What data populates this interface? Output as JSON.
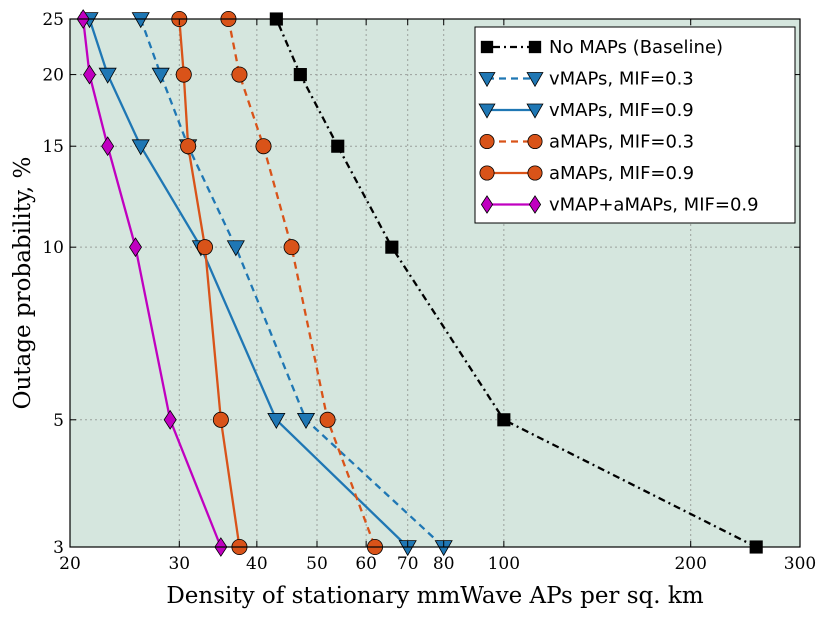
{
  "chart_data": {
    "type": "line",
    "title": "",
    "xlabel": "Density of stationary mmWave APs per sq. km",
    "ylabel": "Outage probability, %",
    "xscale": "log",
    "yscale": "log",
    "xlim": [
      20,
      300
    ],
    "ylim": [
      3,
      25
    ],
    "xticks": [
      20,
      30,
      40,
      50,
      60,
      70,
      80,
      100,
      200,
      300
    ],
    "xtick_labels": [
      "20",
      "30",
      "40",
      "50",
      "60",
      "70",
      "80",
      "100",
      "200",
      "300"
    ],
    "yticks": [
      3,
      5,
      10,
      15,
      20,
      25
    ],
    "ytick_labels": [
      "3",
      "5",
      "10",
      "15",
      "20",
      "25"
    ],
    "grid": true,
    "legend_position": "top-right",
    "colors": {
      "background": "#d5e6de",
      "grid": "#9aa09c"
    },
    "series": [
      {
        "name": "No MAPs (Baseline)",
        "color": "#000000",
        "line_style": "dashdot",
        "marker": "square",
        "points": [
          [
            43,
            25
          ],
          [
            47,
            20
          ],
          [
            54,
            15
          ],
          [
            66,
            10
          ],
          [
            100,
            5
          ],
          [
            255,
            3
          ]
        ]
      },
      {
        "name": "vMAPs, MIF=0.3",
        "color": "#1f77b4",
        "line_style": "dashed",
        "marker": "triangle-down",
        "points": [
          [
            26,
            25
          ],
          [
            28,
            20
          ],
          [
            31,
            15
          ],
          [
            37,
            10
          ],
          [
            48,
            5
          ],
          [
            80,
            3
          ]
        ]
      },
      {
        "name": "vMAPs, MIF=0.9",
        "color": "#1f77b4",
        "line_style": "solid",
        "marker": "triangle-down",
        "points": [
          [
            21.5,
            25
          ],
          [
            23,
            20
          ],
          [
            26,
            15
          ],
          [
            32.5,
            10
          ],
          [
            43,
            5
          ],
          [
            70,
            3
          ]
        ]
      },
      {
        "name": "aMAPs, MIF=0.3",
        "color": "#d95319",
        "line_style": "dashed",
        "marker": "circle",
        "points": [
          [
            36,
            25
          ],
          [
            37.5,
            20
          ],
          [
            41,
            15
          ],
          [
            45.5,
            10
          ],
          [
            52,
            5
          ],
          [
            62,
            3
          ]
        ]
      },
      {
        "name": "aMAPs, MIF=0.9",
        "color": "#d95319",
        "line_style": "solid",
        "marker": "circle",
        "points": [
          [
            30,
            25
          ],
          [
            30.5,
            20
          ],
          [
            31,
            15
          ],
          [
            33,
            10
          ],
          [
            35,
            5
          ],
          [
            37.5,
            3
          ]
        ]
      },
      {
        "name": "vMAP+aMAPs, MIF=0.9",
        "color": "#c000c0",
        "line_style": "solid",
        "marker": "diamond",
        "points": [
          [
            21,
            25
          ],
          [
            21.5,
            20
          ],
          [
            23,
            15
          ],
          [
            25.5,
            10
          ],
          [
            29,
            5
          ],
          [
            35,
            3
          ]
        ]
      }
    ]
  }
}
